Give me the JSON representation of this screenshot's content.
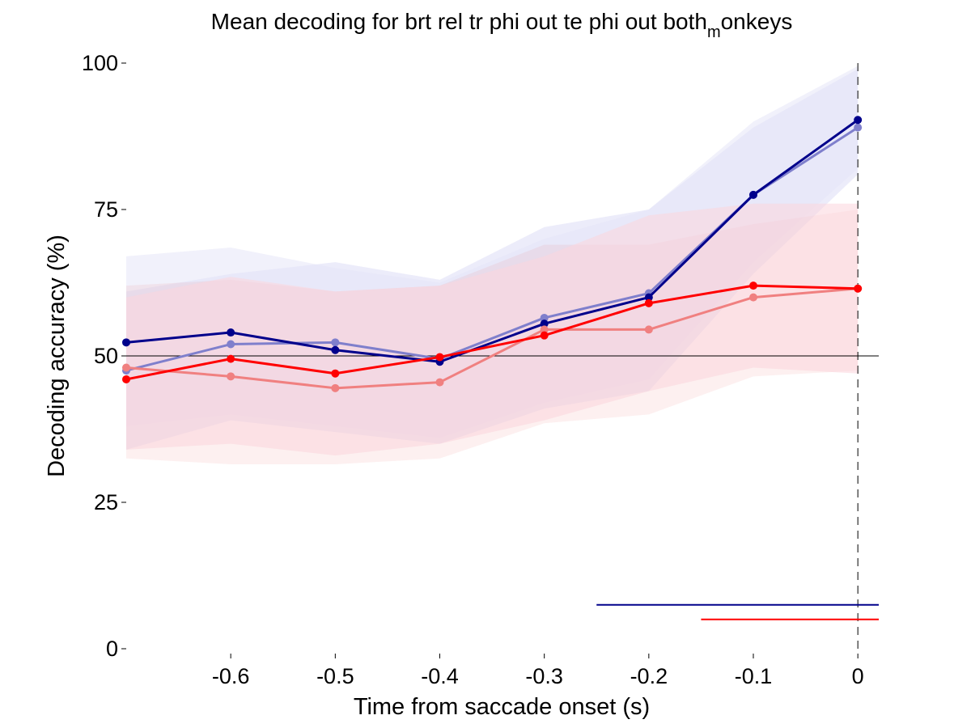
{
  "chart_data": {
    "type": "line",
    "title": {
      "main": "Mean decoding for brt rel tr phi out te phi out  both",
      "subscript": "m",
      "tail": "onkeys"
    },
    "xlabel": "Time from saccade onset (s)",
    "ylabel": "Decoding accuracy (%)",
    "xlim": [
      -0.7,
      0.02
    ],
    "ylim": [
      0,
      100
    ],
    "xticks": [
      -0.6,
      -0.5,
      -0.4,
      -0.3,
      -0.2,
      -0.1,
      0
    ],
    "xtick_labels": [
      "-0.6",
      "-0.5",
      "-0.4",
      "-0.3",
      "-0.2",
      "-0.1",
      "0"
    ],
    "yticks": [
      0,
      25,
      50,
      75,
      100
    ],
    "ytick_labels": [
      "0",
      "25",
      "50",
      "75",
      "100"
    ],
    "grid": false,
    "x": [
      -0.7,
      -0.6,
      -0.5,
      -0.4,
      -0.3,
      -0.2,
      -0.1,
      0
    ],
    "series": [
      {
        "color": "#7f7fcc",
        "values": [
          47.5,
          52,
          52.3,
          49.5,
          56.5,
          60.7,
          77.5,
          89
        ],
        "lower": [
          34,
          39,
          37,
          35,
          41,
          44,
          64,
          81
        ],
        "upper": [
          61,
          64,
          66,
          63,
          72,
          75,
          89,
          99
        ],
        "band_color": "#dcdcf5"
      },
      {
        "color": "#00008b",
        "values": [
          52.3,
          54,
          51,
          49,
          55.5,
          60,
          77.5,
          90.3
        ],
        "lower": [
          38,
          40,
          38,
          36,
          42,
          46,
          66,
          82
        ],
        "upper": [
          67,
          68.5,
          65,
          62.5,
          70,
          75,
          90,
          99.5
        ],
        "band_color": "#e6e6f7"
      },
      {
        "color": "#f08080",
        "values": [
          48,
          46.5,
          44.5,
          45.5,
          54.5,
          54.5,
          60,
          61.5
        ],
        "lower": [
          32.5,
          31.5,
          31.5,
          32.5,
          38.5,
          40,
          46.5,
          47.5
        ],
        "upper": [
          62,
          63,
          61,
          62,
          69,
          69,
          72.5,
          75
        ]
      },
      {
        "color": "#ff0000",
        "values": [
          46,
          49.5,
          47,
          49.8,
          53.5,
          59,
          62,
          61.5
        ],
        "lower": [
          34,
          35,
          33,
          35,
          39,
          44,
          48,
          47
        ],
        "upper": [
          60,
          63.5,
          61,
          62,
          67,
          74,
          76,
          76
        ],
        "band_color": "#fbd5dc"
      }
    ],
    "chance_level": 50,
    "vline_x": 0,
    "significance_bars": [
      {
        "color": "#00008b",
        "x_start": -0.25,
        "x_end": 0.02,
        "y": 7.5
      },
      {
        "color": "#ff0000",
        "x_start": -0.15,
        "x_end": 0.02,
        "y": 5
      }
    ]
  }
}
